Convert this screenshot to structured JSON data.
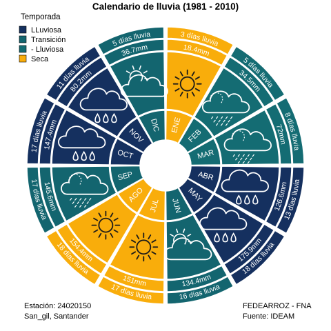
{
  "chart_data": {
    "type": "radial-calendar",
    "title": "Calendario de lluvia (1981 - 2010)",
    "legend": {
      "title": "Temporada",
      "entries": [
        {
          "key": "lluvioso",
          "label": "LLuviosa",
          "color": "#15305f"
        },
        {
          "key": "transicion_lluvioso",
          "label": "Transición",
          "color": "#13656f"
        },
        {
          "key": "transicion_seco",
          "label": "- Lluviosa",
          "color": "#146c73"
        },
        {
          "key": "seco",
          "label": "Seca",
          "color": "#f9ad0b"
        }
      ]
    },
    "months": [
      {
        "name": "ENE",
        "mm": "18.4mm",
        "days": "3 días lluvia",
        "season": "seco",
        "icon": "sun-icon"
      },
      {
        "name": "FEB",
        "mm": "34.5mm",
        "days": "5 días lluvia",
        "season": "transicion_seco",
        "icon": "cloud-light-rain-icon"
      },
      {
        "name": "MAR",
        "mm": "72mm",
        "days": "8 días lluvia",
        "season": "transicion_seco",
        "icon": "cloud-light-rain-icon"
      },
      {
        "name": "ABR",
        "mm": "126.6mm",
        "days": "13 días lluvia",
        "season": "lluvioso",
        "icon": "cloud-heavy-rain-icon"
      },
      {
        "name": "MAY",
        "mm": "175.9mm",
        "days": "18 días lluvia",
        "season": "lluvioso",
        "icon": "cloud-heavy-rain-icon"
      },
      {
        "name": "JUN",
        "mm": "134.4mm",
        "days": "16 días lluvia",
        "season": "transicion_lluvioso",
        "icon": "sun-cloud-icon"
      },
      {
        "name": "JUL",
        "mm": "151mm",
        "days": "17 días lluvia",
        "season": "seco",
        "icon": "sun-icon"
      },
      {
        "name": "AGO",
        "mm": "154.4mm",
        "days": "18 días lluvia",
        "season": "seco",
        "icon": "sun-icon"
      },
      {
        "name": "SEP",
        "mm": "145.6mm",
        "days": "17 días lluvia",
        "season": "transicion_lluvioso",
        "icon": "cloud-light-rain-icon"
      },
      {
        "name": "OCT",
        "mm": "147.4mm",
        "days": "17 días lluvia",
        "season": "lluvioso",
        "icon": "cloud-heavy-rain-icon"
      },
      {
        "name": "NOV",
        "mm": "80.2mm",
        "days": "11 días lluvia",
        "season": "lluvioso",
        "icon": "cloud-heavy-rain-icon"
      },
      {
        "name": "DIC",
        "mm": "36.7mm",
        "days": "5 días lluvia",
        "season": "transicion_lluvioso",
        "icon": "sun-cloud-icon"
      }
    ]
  },
  "footer": {
    "station_line1": "Estación: 24020150",
    "station_line2": "San_gil, Santander",
    "credit_line1": "FEDEARROZ - FNA",
    "credit_line2": "Fuente: IDEAM"
  }
}
